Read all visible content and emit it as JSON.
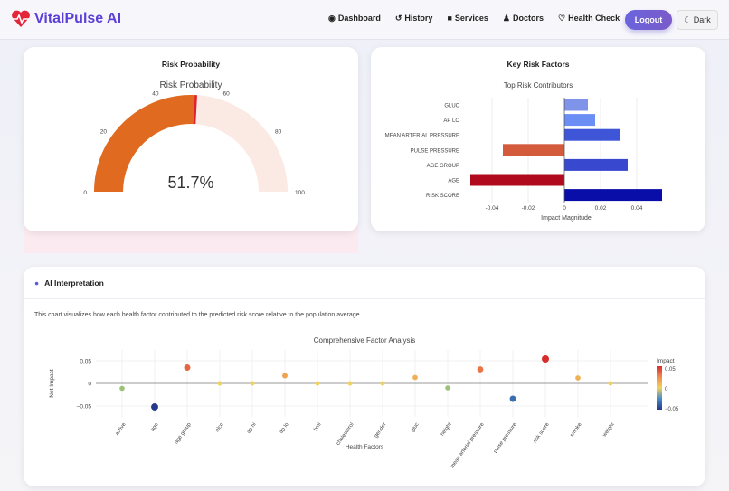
{
  "nav": {
    "brand": "VitalPulse AI",
    "items": [
      {
        "label": "Dashboard",
        "icon": "dashboard-icon"
      },
      {
        "label": "History",
        "icon": "history-icon"
      },
      {
        "label": "Services",
        "icon": "briefcase-icon"
      },
      {
        "label": "Doctors",
        "icon": "doctor-icon"
      },
      {
        "label": "Health Check",
        "icon": "stethoscope-icon"
      }
    ],
    "logout": "Logout",
    "dark": "Dark"
  },
  "colors": {
    "brand": "#5b3fd6",
    "gauge_fill": "#e06a20",
    "gauge_bg": "#fbe9e4"
  },
  "risk": {
    "card_title": "Risk Probability",
    "chart_title": "Risk Probability",
    "value": 51.7,
    "value_label": "51.7%",
    "range": [
      0,
      100
    ],
    "ticks": [
      "0",
      "20",
      "40",
      "60",
      "80",
      "100"
    ]
  },
  "factors": {
    "card_title": "Key Risk Factors",
    "chart_data": {
      "type": "bar",
      "orientation": "horizontal",
      "title": "Top Risk Contributors",
      "xlabel": "Impact Magnitude",
      "xlim": [
        -0.055,
        0.057
      ],
      "xticks": [
        "-0.04",
        "-0.02",
        "0",
        "0.02",
        "0.04"
      ],
      "categories": [
        "GLUC",
        "AP LO",
        "MEAN ARTERIAL PRESSURE",
        "PULSE PRESSURE",
        "AGE GROUP",
        "AGE",
        "RISK SCORE"
      ],
      "values": [
        0.013,
        0.017,
        0.031,
        -0.034,
        0.035,
        -0.052,
        0.054
      ],
      "colors": [
        "#7f93e8",
        "#6b8ef5",
        "#3d55d6",
        "#d45a3c",
        "#3949cf",
        "#b00a1f",
        "#0a0ea8"
      ]
    }
  },
  "ai": {
    "title": "AI Interpretation",
    "description": "This chart visualizes how each health factor contributed to the predicted risk score relative to the population average.",
    "chart_data": {
      "type": "scatter",
      "title": "Comprehensive Factor Analysis",
      "xlabel": "Health Factors",
      "ylabel": "Net Impact",
      "yticks": [
        "0.05",
        "0",
        "−0.05"
      ],
      "ylim": [
        -0.065,
        0.065
      ],
      "categories": [
        "active",
        "age",
        "age group",
        "alco",
        "ap hi",
        "ap lo",
        "bmi",
        "cholesterol",
        "gender",
        "gluc",
        "height",
        "mean arterial pressure",
        "pulse pressure",
        "risk score",
        "smoke",
        "weight"
      ],
      "values": [
        -0.011,
        -0.052,
        0.035,
        0,
        0,
        0.017,
        0,
        0,
        0,
        0.013,
        -0.01,
        0.031,
        -0.034,
        0.054,
        0.012,
        0
      ],
      "colorbar": {
        "title": "Impact",
        "ticks": [
          "0.05",
          "0",
          "−0.05"
        ],
        "range": [
          -0.05,
          0.05
        ]
      }
    }
  }
}
